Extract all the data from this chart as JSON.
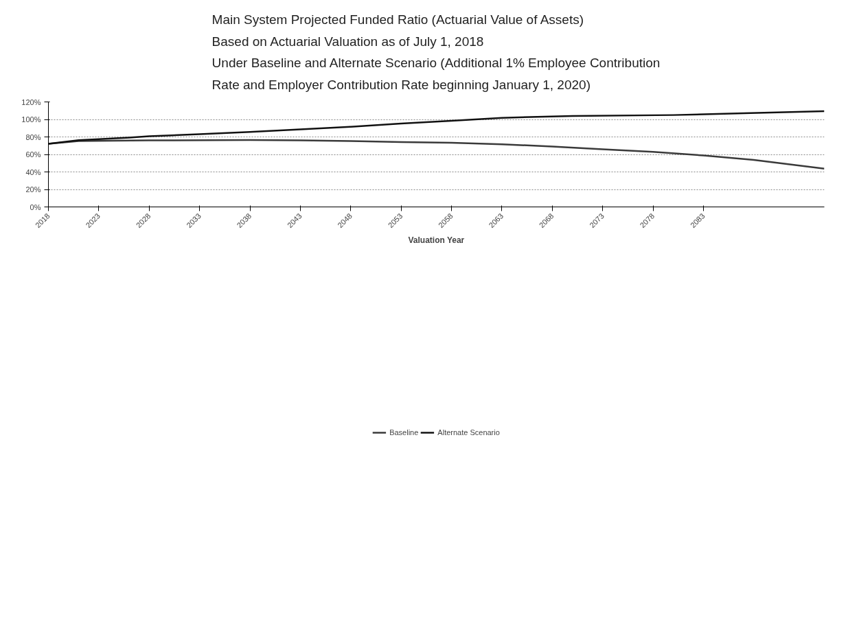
{
  "chart_data": {
    "type": "line",
    "title": "Main System Projected Funded Ratio (Actuarial Value of Assets)\nBased on Actuarial Valuation as of July 1, 2018\nUnder Baseline and Alternate Scenario (Additional 1% Employee Contribution\nRate and Employer Contribution Rate beginning January 1, 2020)",
    "xlabel": "Valuation Year",
    "series": [
      {
        "name": "Baseline",
        "color": "#3a3a3a",
        "x": [
          2018,
          2021,
          2028,
          2038,
          2043,
          2048,
          2053,
          2058,
          2063,
          2068,
          2073,
          2078,
          2083,
          2088,
          2095
        ],
        "values": [
          72.1,
          75.3,
          76,
          76.5,
          76,
          75.3,
          74.1,
          73.3,
          71.6,
          69,
          65.9,
          63,
          58.8,
          53.8,
          43.7
        ]
      },
      {
        "name": "Alternate Scenario",
        "color": "#111111",
        "x": [
          2018,
          2021,
          2023,
          2026,
          2028,
          2033,
          2038,
          2043,
          2048,
          2053,
          2058,
          2063,
          2070,
          2080,
          2087,
          2095
        ],
        "values": [
          72.1,
          76.3,
          77.5,
          79.3,
          80.7,
          83.2,
          85.7,
          88.6,
          91.6,
          95.3,
          98.5,
          101.8,
          104,
          105,
          107,
          109.5
        ]
      }
    ],
    "xlim": [
      2018,
      2095
    ],
    "xticks": [
      2018,
      2023,
      2028,
      2033,
      2038,
      2043,
      2048,
      2053,
      2058,
      2063,
      2068,
      2073,
      2078,
      2083
    ],
    "ylim": [
      0,
      120
    ],
    "yticks": [
      {
        "value": 0,
        "label": "0%"
      },
      {
        "value": 20,
        "label": "20%"
      },
      {
        "value": 40,
        "label": "40%"
      },
      {
        "value": 60,
        "label": "60%"
      },
      {
        "value": 80,
        "label": "80%"
      },
      {
        "value": 100,
        "label": "100%"
      },
      {
        "value": 120,
        "label": "120%"
      }
    ],
    "grid": "y",
    "legend": "bottom",
    "marker": "none",
    "line_style": "solid"
  }
}
